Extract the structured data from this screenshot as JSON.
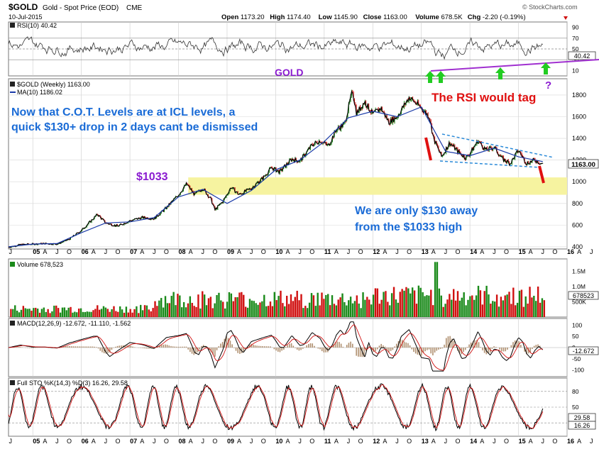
{
  "header": {
    "symbol": "$GOLD",
    "description": "Gold - Spot Price (EOD)",
    "exchange": "CME",
    "date": "10-Jul-2015",
    "copyright": "© StockCharts.com",
    "ohlc": [
      {
        "label": "Open",
        "value": "1173.20"
      },
      {
        "label": "High",
        "value": "1174.40"
      },
      {
        "label": "Low",
        "value": "1145.90"
      },
      {
        "label": "Close",
        "value": "1163.00"
      },
      {
        "label": "Volume",
        "value": "678.5K"
      },
      {
        "label": "Chg",
        "value": "-2.20 (-0.19%)"
      }
    ]
  },
  "colors": {
    "price_line": "#000000",
    "ma_line": "#1a3aa8",
    "up_bar": "#1a8a1a",
    "down_bar": "#d01010",
    "support_zone": "#f6f3a0",
    "annotation_blue": "#1a6bd6",
    "annotation_purple": "#8a1ad0",
    "annotation_red": "#e01010",
    "arrow_green": "#22cc22",
    "channel_dash": "#2a8ad8"
  },
  "x_axis": {
    "years": [
      "05",
      "06",
      "07",
      "08",
      "09",
      "10",
      "11",
      "12",
      "13",
      "14",
      "15",
      "16"
    ],
    "months": [
      "A",
      "J",
      "O",
      "A",
      "J",
      "O",
      "A",
      "J",
      "O",
      "A",
      "J",
      "O",
      "A",
      "J",
      "O",
      "A",
      "J",
      "O",
      "A",
      "J",
      "O",
      "A",
      "J",
      "O",
      "A",
      "J",
      "O",
      "A",
      "J",
      "O",
      "A",
      "J",
      "O",
      "A",
      "J",
      "O",
      "A",
      "J",
      "O",
      "A",
      "J",
      "O",
      "A",
      "J"
    ],
    "leading_month": "J"
  },
  "rsi_panel": {
    "label": "RSI(10) 40.42",
    "last_value_tag": "40.42",
    "tick_labels": [
      "90",
      "70",
      "50",
      "30",
      "10"
    ],
    "annotation": "GOLD",
    "question_mark": "?",
    "levels": [
      30,
      50,
      70
    ]
  },
  "price_panel": {
    "legend_price": "$GOLD (Weekly) 1163.00",
    "legend_ma": "MA(10) 1186.02",
    "last_value_tag": "1163.00",
    "tick_labels": [
      "1800",
      "1600",
      "1400",
      "1200",
      "1000",
      "800",
      "600",
      "400"
    ],
    "annotations": {
      "cot_line1": "Now that C.O.T. Levels are at ICL levels, a",
      "cot_line2": "quick $130+ drop in 2 days cant be dismissed",
      "level_1033": "$1033",
      "away_line1": "We are only $130 away",
      "away_line2": "from the $1033 high",
      "rsi_tag": "The RSI would tag"
    }
  },
  "volume_panel": {
    "label": "Volume 678,523",
    "last_value_tag": "678523",
    "tick_labels": [
      "1.5M",
      "1.0M",
      "500K"
    ]
  },
  "macd_panel": {
    "label": "MACD(12,26,9) -12.672, -11.110, -1.562",
    "last_value_tag": "-12.672",
    "tick_labels": [
      "100",
      "50",
      "0",
      "-50",
      "-100"
    ]
  },
  "sto_panel": {
    "label": "Full STO %K(14,3) %D(3) 16.26, 29.58",
    "tag_d": "29.58",
    "tag_k": "16.26",
    "tick_labels": [
      "80",
      "50",
      "20"
    ]
  },
  "chart_data": {
    "type": "line",
    "title": "$GOLD Gold - Spot Price (EOD) CME",
    "x_range": [
      "2004-07",
      "2016-01"
    ],
    "series": [
      {
        "name": "$GOLD (Weekly)",
        "x": [
          "2004-07",
          "2004-10",
          "2005-01",
          "2005-04",
          "2005-07",
          "2005-10",
          "2006-01",
          "2006-05",
          "2006-07",
          "2006-10",
          "2007-01",
          "2007-04",
          "2007-07",
          "2007-10",
          "2008-01",
          "2008-03",
          "2008-05",
          "2008-07",
          "2008-09",
          "2008-10",
          "2008-12",
          "2009-02",
          "2009-04",
          "2009-07",
          "2009-10",
          "2009-12",
          "2010-02",
          "2010-05",
          "2010-07",
          "2010-10",
          "2010-12",
          "2011-02",
          "2011-04",
          "2011-06",
          "2011-08",
          "2011-09",
          "2011-11",
          "2012-01",
          "2012-03",
          "2012-05",
          "2012-07",
          "2012-10",
          "2013-01",
          "2013-03",
          "2013-04",
          "2013-06",
          "2013-08",
          "2013-10",
          "2013-12",
          "2014-01",
          "2014-03",
          "2014-05",
          "2014-07",
          "2014-09",
          "2014-11",
          "2015-01",
          "2015-03",
          "2015-05",
          "2015-07"
        ],
        "values": [
          395,
          420,
          425,
          430,
          425,
          470,
          550,
          700,
          620,
          590,
          640,
          670,
          660,
          760,
          880,
          980,
          880,
          940,
          840,
          740,
          820,
          950,
          880,
          940,
          1040,
          1130,
          1090,
          1210,
          1190,
          1340,
          1380,
          1330,
          1480,
          1530,
          1840,
          1630,
          1740,
          1620,
          1680,
          1550,
          1600,
          1780,
          1680,
          1600,
          1400,
          1230,
          1360,
          1280,
          1220,
          1260,
          1380,
          1290,
          1320,
          1210,
          1170,
          1290,
          1170,
          1200,
          1163
        ]
      },
      {
        "name": "MA(10)",
        "x": [
          "2004-07",
          "2005-01",
          "2005-07",
          "2006-01",
          "2006-07",
          "2007-01",
          "2007-07",
          "2008-01",
          "2008-07",
          "2009-01",
          "2009-07",
          "2010-01",
          "2010-07",
          "2011-01",
          "2011-07",
          "2012-01",
          "2012-07",
          "2013-01",
          "2013-07",
          "2014-01",
          "2014-07",
          "2015-01",
          "2015-07"
        ],
        "values": [
          400,
          425,
          430,
          530,
          620,
          630,
          670,
          860,
          930,
          800,
          920,
          1110,
          1200,
          1370,
          1590,
          1650,
          1600,
          1690,
          1280,
          1240,
          1310,
          1230,
          1186
        ]
      }
    ],
    "ylim": [
      380,
      1950
    ],
    "y_ticks": [
      400,
      600,
      800,
      1000,
      1200,
      1400,
      1600,
      1800
    ],
    "support_zone": [
      880,
      1040
    ],
    "last_close": 1163.0,
    "ma_last": 1186.02,
    "rsi_last": 40.42,
    "volume_last": 678523,
    "macd": {
      "macd": -12.672,
      "signal": -11.11,
      "histogram": -1.562
    },
    "full_sto": {
      "k": 16.26,
      "d": 29.58
    },
    "grid": true,
    "legend_position": "top-left"
  }
}
